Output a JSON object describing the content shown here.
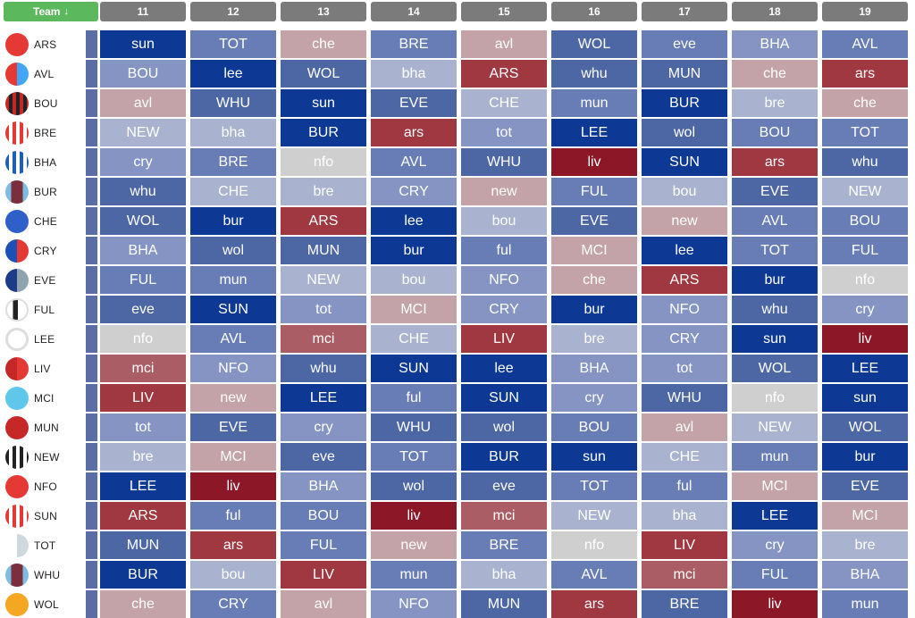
{
  "header": {
    "team_label": "Team",
    "sort_icon": "↓",
    "gameweeks": [
      "11",
      "12",
      "13",
      "14",
      "15",
      "16",
      "17",
      "18",
      "19"
    ]
  },
  "teams": [
    {
      "abbr": "ARS",
      "badge": {
        "type": "solid",
        "colors": [
          "#e53935"
        ]
      },
      "fixtures": [
        [
          "sun",
          "d5"
        ],
        [
          "TOT",
          "m3"
        ],
        [
          "che",
          "r1"
        ],
        [
          "BRE",
          "m3"
        ],
        [
          "avl",
          "r1"
        ],
        [
          "WOL",
          "m4"
        ],
        [
          "eve",
          "m3"
        ],
        [
          "BHA",
          "m2"
        ],
        [
          "AVL",
          "m3"
        ]
      ]
    },
    {
      "abbr": "AVL",
      "badge": {
        "type": "half",
        "colors": [
          "#e53935",
          "#42a5f5"
        ]
      },
      "fixtures": [
        [
          "BOU",
          "m2"
        ],
        [
          "lee",
          "d5"
        ],
        [
          "WOL",
          "m4"
        ],
        [
          "bha",
          "m1"
        ],
        [
          "ARS",
          "r3"
        ],
        [
          "whu",
          "m4"
        ],
        [
          "MUN",
          "m4"
        ],
        [
          "che",
          "r1"
        ],
        [
          "ars",
          "r3"
        ]
      ]
    },
    {
      "abbr": "BOU",
      "badge": {
        "type": "stripes",
        "colors": [
          "#c62828",
          "#222222"
        ]
      },
      "fixtures": [
        [
          "avl",
          "r1"
        ],
        [
          "WHU",
          "m4"
        ],
        [
          "sun",
          "d5"
        ],
        [
          "EVE",
          "m4"
        ],
        [
          "CHE",
          "m1"
        ],
        [
          "mun",
          "m3"
        ],
        [
          "BUR",
          "d5"
        ],
        [
          "bre",
          "m1"
        ],
        [
          "che",
          "r1"
        ]
      ]
    },
    {
      "abbr": "BRE",
      "badge": {
        "type": "stripes",
        "colors": [
          "#e53935",
          "#ffffff"
        ]
      },
      "fixtures": [
        [
          "NEW",
          "m1"
        ],
        [
          "bha",
          "m1"
        ],
        [
          "BUR",
          "d5"
        ],
        [
          "ars",
          "r3"
        ],
        [
          "tot",
          "m2"
        ],
        [
          "LEE",
          "d5"
        ],
        [
          "wol",
          "m4"
        ],
        [
          "BOU",
          "m3"
        ],
        [
          "TOT",
          "m3"
        ]
      ]
    },
    {
      "abbr": "BHA",
      "badge": {
        "type": "stripes",
        "colors": [
          "#1e5fb4",
          "#ffffff"
        ]
      },
      "fixtures": [
        [
          "cry",
          "m2"
        ],
        [
          "BRE",
          "m3"
        ],
        [
          "nfo",
          "g1"
        ],
        [
          "AVL",
          "m3"
        ],
        [
          "WHU",
          "m4"
        ],
        [
          "liv",
          "r4"
        ],
        [
          "SUN",
          "d5"
        ],
        [
          "ars",
          "r3"
        ],
        [
          "whu",
          "m4"
        ]
      ]
    },
    {
      "abbr": "BUR",
      "badge": {
        "type": "band",
        "colors": [
          "#7b2e3c",
          "#7fbde0"
        ]
      },
      "fixtures": [
        [
          "whu",
          "m4"
        ],
        [
          "CHE",
          "m1"
        ],
        [
          "bre",
          "m1"
        ],
        [
          "CRY",
          "m2"
        ],
        [
          "new",
          "r1"
        ],
        [
          "FUL",
          "m3"
        ],
        [
          "bou",
          "m1"
        ],
        [
          "EVE",
          "m4"
        ],
        [
          "NEW",
          "m1"
        ]
      ]
    },
    {
      "abbr": "CHE",
      "badge": {
        "type": "solid",
        "colors": [
          "#2f5fc9"
        ]
      },
      "fixtures": [
        [
          "WOL",
          "m4"
        ],
        [
          "bur",
          "d5"
        ],
        [
          "ARS",
          "r3"
        ],
        [
          "lee",
          "d5"
        ],
        [
          "bou",
          "m1"
        ],
        [
          "EVE",
          "m4"
        ],
        [
          "new",
          "r1"
        ],
        [
          "AVL",
          "m3"
        ],
        [
          "BOU",
          "m3"
        ]
      ]
    },
    {
      "abbr": "CRY",
      "badge": {
        "type": "half",
        "colors": [
          "#1e4fb4",
          "#e53935"
        ]
      },
      "fixtures": [
        [
          "BHA",
          "m2"
        ],
        [
          "wol",
          "m4"
        ],
        [
          "MUN",
          "m4"
        ],
        [
          "bur",
          "d5"
        ],
        [
          "ful",
          "m3"
        ],
        [
          "MCI",
          "r1"
        ],
        [
          "lee",
          "d5"
        ],
        [
          "TOT",
          "m3"
        ],
        [
          "FUL",
          "m3"
        ]
      ]
    },
    {
      "abbr": "EVE",
      "badge": {
        "type": "half",
        "colors": [
          "#1e3a8a",
          "#90a4ae"
        ]
      },
      "fixtures": [
        [
          "FUL",
          "m3"
        ],
        [
          "mun",
          "m3"
        ],
        [
          "NEW",
          "m1"
        ],
        [
          "bou",
          "m1"
        ],
        [
          "NFO",
          "m2"
        ],
        [
          "che",
          "r1"
        ],
        [
          "ARS",
          "r3"
        ],
        [
          "bur",
          "d5"
        ],
        [
          "nfo",
          "g1"
        ]
      ]
    },
    {
      "abbr": "FUL",
      "badge": {
        "type": "ful",
        "colors": [
          "#222222",
          "#ffffff"
        ]
      },
      "fixtures": [
        [
          "eve",
          "m4"
        ],
        [
          "SUN",
          "d5"
        ],
        [
          "tot",
          "m2"
        ],
        [
          "MCI",
          "r1"
        ],
        [
          "CRY",
          "m2"
        ],
        [
          "bur",
          "d5"
        ],
        [
          "NFO",
          "m2"
        ],
        [
          "whu",
          "m4"
        ],
        [
          "cry",
          "m2"
        ]
      ]
    },
    {
      "abbr": "LEE",
      "badge": {
        "type": "ring",
        "colors": [
          "#ffffff",
          "#eeeeee"
        ]
      },
      "fixtures": [
        [
          "nfo",
          "g1"
        ],
        [
          "AVL",
          "m3"
        ],
        [
          "mci",
          "r2"
        ],
        [
          "CHE",
          "m1"
        ],
        [
          "LIV",
          "r3"
        ],
        [
          "bre",
          "m1"
        ],
        [
          "CRY",
          "m2"
        ],
        [
          "sun",
          "d5"
        ],
        [
          "liv",
          "r4"
        ]
      ]
    },
    {
      "abbr": "LIV",
      "badge": {
        "type": "half",
        "colors": [
          "#c62828",
          "#e53935"
        ]
      },
      "fixtures": [
        [
          "mci",
          "r2"
        ],
        [
          "NFO",
          "m2"
        ],
        [
          "whu",
          "m4"
        ],
        [
          "SUN",
          "d5"
        ],
        [
          "lee",
          "d5"
        ],
        [
          "BHA",
          "m2"
        ],
        [
          "tot",
          "m2"
        ],
        [
          "WOL",
          "m4"
        ],
        [
          "LEE",
          "d5"
        ]
      ]
    },
    {
      "abbr": "MCI",
      "badge": {
        "type": "solid",
        "colors": [
          "#5ec7ea"
        ]
      },
      "fixtures": [
        [
          "LIV",
          "r3"
        ],
        [
          "new",
          "r1"
        ],
        [
          "LEE",
          "d5"
        ],
        [
          "ful",
          "m3"
        ],
        [
          "SUN",
          "d5"
        ],
        [
          "cry",
          "m2"
        ],
        [
          "WHU",
          "m4"
        ],
        [
          "nfo",
          "g1"
        ],
        [
          "sun",
          "d5"
        ]
      ]
    },
    {
      "abbr": "MUN",
      "badge": {
        "type": "solid",
        "colors": [
          "#c62828"
        ]
      },
      "fixtures": [
        [
          "tot",
          "m2"
        ],
        [
          "EVE",
          "m4"
        ],
        [
          "cry",
          "m2"
        ],
        [
          "WHU",
          "m4"
        ],
        [
          "wol",
          "m4"
        ],
        [
          "BOU",
          "m3"
        ],
        [
          "avl",
          "r1"
        ],
        [
          "NEW",
          "m1"
        ],
        [
          "WOL",
          "m4"
        ]
      ]
    },
    {
      "abbr": "NEW",
      "badge": {
        "type": "stripes",
        "colors": [
          "#222222",
          "#ffffff"
        ]
      },
      "fixtures": [
        [
          "bre",
          "m1"
        ],
        [
          "MCI",
          "r1"
        ],
        [
          "eve",
          "m4"
        ],
        [
          "TOT",
          "m3"
        ],
        [
          "BUR",
          "d5"
        ],
        [
          "sun",
          "d5"
        ],
        [
          "CHE",
          "m1"
        ],
        [
          "mun",
          "m3"
        ],
        [
          "bur",
          "d5"
        ]
      ]
    },
    {
      "abbr": "NFO",
      "badge": {
        "type": "solid",
        "colors": [
          "#e53935"
        ]
      },
      "fixtures": [
        [
          "LEE",
          "d5"
        ],
        [
          "liv",
          "r4"
        ],
        [
          "BHA",
          "m2"
        ],
        [
          "wol",
          "m4"
        ],
        [
          "eve",
          "m4"
        ],
        [
          "TOT",
          "m3"
        ],
        [
          "ful",
          "m3"
        ],
        [
          "MCI",
          "r1"
        ],
        [
          "EVE",
          "m4"
        ]
      ]
    },
    {
      "abbr": "SUN",
      "badge": {
        "type": "stripes",
        "colors": [
          "#e53935",
          "#ffffff"
        ]
      },
      "fixtures": [
        [
          "ARS",
          "r3"
        ],
        [
          "ful",
          "m3"
        ],
        [
          "BOU",
          "m3"
        ],
        [
          "liv",
          "r4"
        ],
        [
          "mci",
          "r2"
        ],
        [
          "NEW",
          "m1"
        ],
        [
          "bha",
          "m1"
        ],
        [
          "LEE",
          "d5"
        ],
        [
          "MCI",
          "r1"
        ]
      ]
    },
    {
      "abbr": "TOT",
      "badge": {
        "type": "half",
        "colors": [
          "#ffffff",
          "#cfd8dc"
        ]
      },
      "fixtures": [
        [
          "MUN",
          "m4"
        ],
        [
          "ars",
          "r3"
        ],
        [
          "FUL",
          "m3"
        ],
        [
          "new",
          "r1"
        ],
        [
          "BRE",
          "m3"
        ],
        [
          "nfo",
          "g1"
        ],
        [
          "LIV",
          "r3"
        ],
        [
          "cry",
          "m2"
        ],
        [
          "bre",
          "m1"
        ]
      ]
    },
    {
      "abbr": "WHU",
      "badge": {
        "type": "band",
        "colors": [
          "#7b2e3c",
          "#7fbde0"
        ]
      },
      "fixtures": [
        [
          "BUR",
          "d5"
        ],
        [
          "bou",
          "m1"
        ],
        [
          "LIV",
          "r3"
        ],
        [
          "mun",
          "m3"
        ],
        [
          "bha",
          "m1"
        ],
        [
          "AVL",
          "m3"
        ],
        [
          "mci",
          "r2"
        ],
        [
          "FUL",
          "m3"
        ],
        [
          "BHA",
          "m2"
        ]
      ]
    },
    {
      "abbr": "WOL",
      "badge": {
        "type": "solid",
        "colors": [
          "#f5a623"
        ]
      },
      "fixtures": [
        [
          "che",
          "r1"
        ],
        [
          "CRY",
          "m3"
        ],
        [
          "avl",
          "r1"
        ],
        [
          "NFO",
          "m2"
        ],
        [
          "MUN",
          "m4"
        ],
        [
          "ars",
          "r3"
        ],
        [
          "BRE",
          "m4"
        ],
        [
          "liv",
          "r4"
        ],
        [
          "mun",
          "m3"
        ]
      ]
    }
  ],
  "difficulty_colors": {
    "d5": "#0d3994",
    "m4": "#4d66a4",
    "m3": "#687db6",
    "m2": "#8594c3",
    "m1": "#a9b3cf",
    "g1": "#cfcfcf",
    "r1": "#c3a3a7",
    "r2": "#ab5d65",
    "r3": "#9f3841",
    "r4": "#8c1727"
  }
}
